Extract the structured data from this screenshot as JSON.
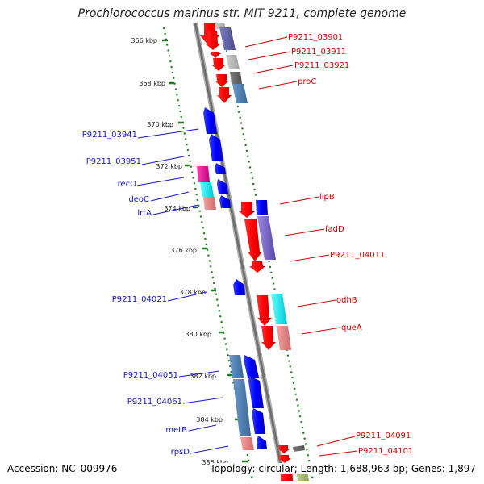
{
  "title": "Prochlorococcus marinus str. MIT 9211, complete genome",
  "footer": {
    "accession": "Accession: NC_009976",
    "summary": "Topology: circular; Length: 1,688,963 bp; Genes: 1,897"
  },
  "ruler": [
    {
      "label": "366 kbp"
    },
    {
      "label": "368 kbp"
    },
    {
      "label": "370 kbp"
    },
    {
      "label": "372 kbp"
    },
    {
      "label": "374 kbp"
    },
    {
      "label": "376 kbp"
    },
    {
      "label": "378 kbp"
    },
    {
      "label": "380 kbp"
    },
    {
      "label": "382 kbp"
    },
    {
      "label": "384 kbp"
    },
    {
      "label": "386 kbp"
    }
  ],
  "left_labels": [
    {
      "label": "P9211_03941"
    },
    {
      "label": "P9211_03951"
    },
    {
      "label": "recO"
    },
    {
      "label": "deoC"
    },
    {
      "label": "lrtA"
    },
    {
      "label": "P9211_04021"
    },
    {
      "label": "P9211_04051"
    },
    {
      "label": "P9211_04061"
    },
    {
      "label": "metB"
    },
    {
      "label": "rpsD"
    }
  ],
  "right_labels": [
    {
      "label": "P9211_03901"
    },
    {
      "label": "P9211_03911"
    },
    {
      "label": "P9211_03921"
    },
    {
      "label": "proC"
    },
    {
      "label": "lipB"
    },
    {
      "label": "fadD"
    },
    {
      "label": "P9211_04011"
    },
    {
      "label": "odhB"
    },
    {
      "label": "queA"
    },
    {
      "label": "P9211_04091"
    },
    {
      "label": "P9211_04101"
    }
  ],
  "colors": {
    "forward_strand": "#ff0000",
    "reverse_strand": "#0000ff",
    "backbone": "#888888",
    "ruler_ticks": "#1e7a1e",
    "left_label_color": "#1515c8",
    "right_label_color": "#d40000"
  }
}
